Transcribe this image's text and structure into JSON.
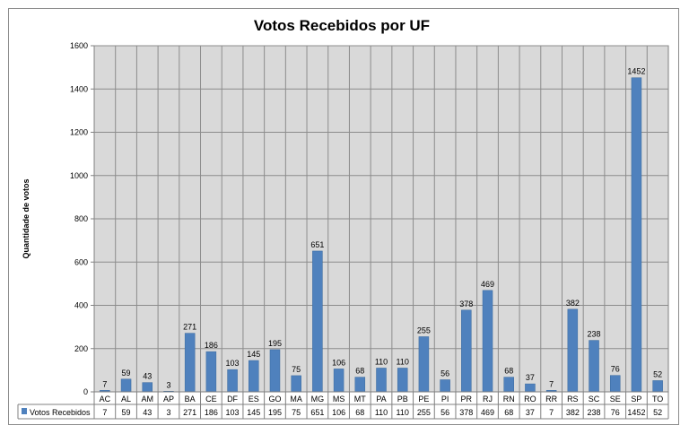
{
  "chart_data": {
    "type": "bar",
    "title": "Votos Recebidos por UF",
    "xlabel": "",
    "ylabel": "Quantidade de votos",
    "ylim": [
      0,
      1600
    ],
    "yticks": [
      0,
      200,
      400,
      600,
      800,
      1000,
      1200,
      1400,
      1600
    ],
    "grid": true,
    "legend": "bottom-left data table",
    "categories": [
      "AC",
      "AL",
      "AM",
      "AP",
      "BA",
      "CE",
      "DF",
      "ES",
      "GO",
      "MA",
      "MG",
      "MS",
      "MT",
      "PA",
      "PB",
      "PE",
      "PI",
      "PR",
      "RJ",
      "RN",
      "RO",
      "RR",
      "RS",
      "SC",
      "SE",
      "SP",
      "TO"
    ],
    "series": [
      {
        "name": "Votos Recebidos",
        "color": "#4f81bd",
        "values": [
          7,
          59,
          43,
          3,
          271,
          186,
          103,
          145,
          195,
          75,
          651,
          106,
          68,
          110,
          110,
          255,
          56,
          378,
          469,
          68,
          37,
          7,
          382,
          238,
          76,
          1452,
          52
        ]
      }
    ]
  }
}
